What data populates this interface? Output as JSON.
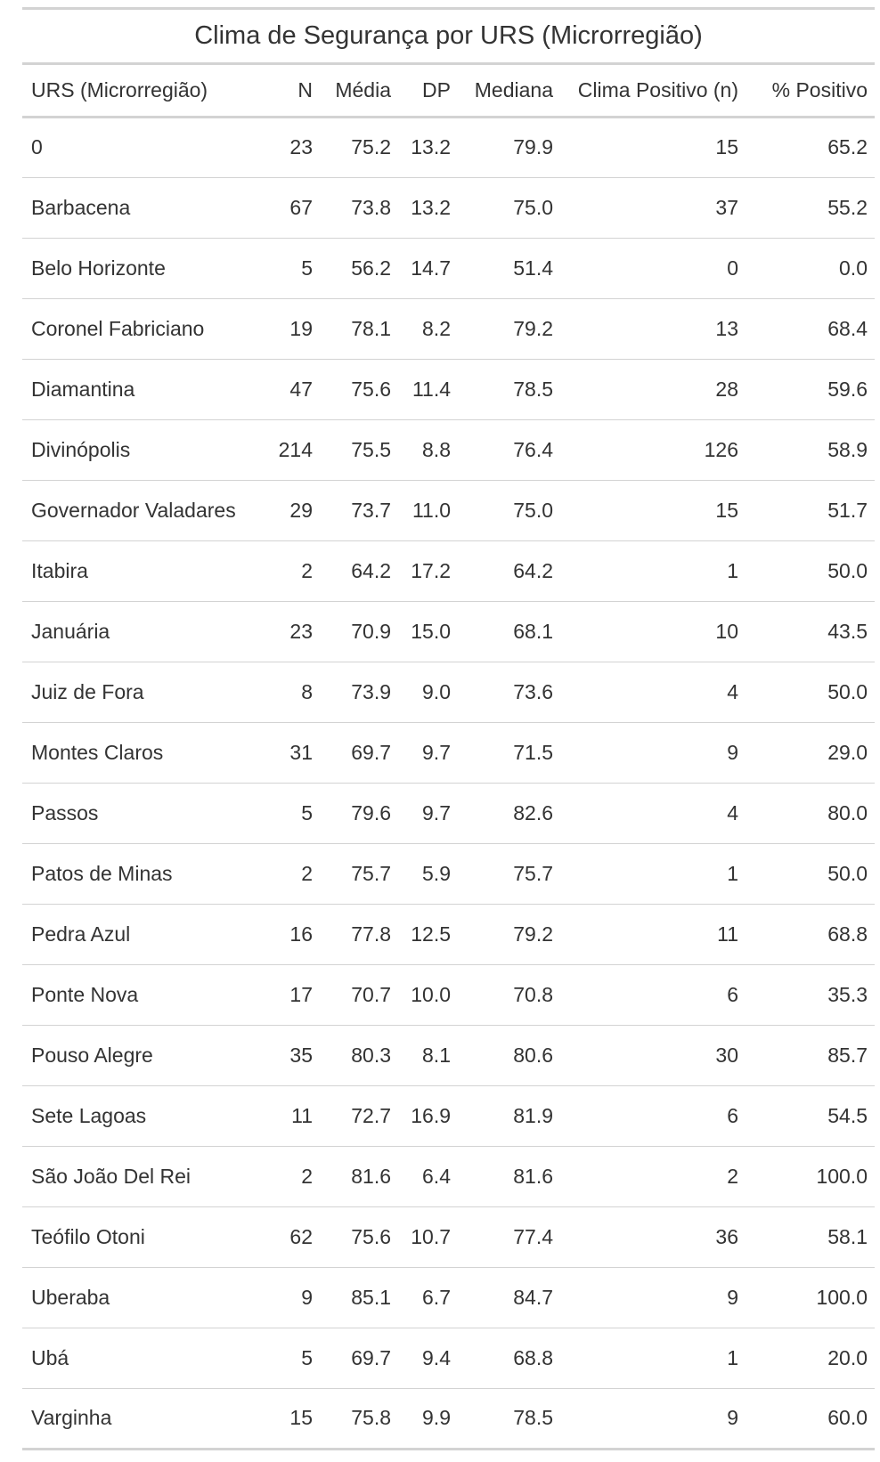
{
  "table": {
    "title": "Clima de Segurança por URS (Microrregião)",
    "columns": [
      "URS (Microrregião)",
      "N",
      "Média",
      "DP",
      "Mediana",
      "Clima Positivo (n)",
      "% Positivo"
    ],
    "rows": [
      [
        "0",
        "23",
        "75.2",
        "13.2",
        "79.9",
        "15",
        "65.2"
      ],
      [
        "Barbacena",
        "67",
        "73.8",
        "13.2",
        "75.0",
        "37",
        "55.2"
      ],
      [
        "Belo Horizonte",
        "5",
        "56.2",
        "14.7",
        "51.4",
        "0",
        "0.0"
      ],
      [
        "Coronel Fabriciano",
        "19",
        "78.1",
        "8.2",
        "79.2",
        "13",
        "68.4"
      ],
      [
        "Diamantina",
        "47",
        "75.6",
        "11.4",
        "78.5",
        "28",
        "59.6"
      ],
      [
        "Divinópolis",
        "214",
        "75.5",
        "8.8",
        "76.4",
        "126",
        "58.9"
      ],
      [
        "Governador Valadares",
        "29",
        "73.7",
        "11.0",
        "75.0",
        "15",
        "51.7"
      ],
      [
        "Itabira",
        "2",
        "64.2",
        "17.2",
        "64.2",
        "1",
        "50.0"
      ],
      [
        "Januária",
        "23",
        "70.9",
        "15.0",
        "68.1",
        "10",
        "43.5"
      ],
      [
        "Juiz de Fora",
        "8",
        "73.9",
        "9.0",
        "73.6",
        "4",
        "50.0"
      ],
      [
        "Montes Claros",
        "31",
        "69.7",
        "9.7",
        "71.5",
        "9",
        "29.0"
      ],
      [
        "Passos",
        "5",
        "79.6",
        "9.7",
        "82.6",
        "4",
        "80.0"
      ],
      [
        "Patos de Minas",
        "2",
        "75.7",
        "5.9",
        "75.7",
        "1",
        "50.0"
      ],
      [
        "Pedra Azul",
        "16",
        "77.8",
        "12.5",
        "79.2",
        "11",
        "68.8"
      ],
      [
        "Ponte Nova",
        "17",
        "70.7",
        "10.0",
        "70.8",
        "6",
        "35.3"
      ],
      [
        "Pouso Alegre",
        "35",
        "80.3",
        "8.1",
        "80.6",
        "30",
        "85.7"
      ],
      [
        "Sete Lagoas",
        "11",
        "72.7",
        "16.9",
        "81.9",
        "6",
        "54.5"
      ],
      [
        "São João Del Rei",
        "2",
        "81.6",
        "6.4",
        "81.6",
        "2",
        "100.0"
      ],
      [
        "Teófilo Otoni",
        "62",
        "75.6",
        "10.7",
        "77.4",
        "36",
        "58.1"
      ],
      [
        "Uberaba",
        "9",
        "85.1",
        "6.7",
        "84.7",
        "9",
        "100.0"
      ],
      [
        "Ubá",
        "5",
        "69.7",
        "9.4",
        "68.8",
        "1",
        "20.0"
      ],
      [
        "Varginha",
        "15",
        "75.8",
        "9.9",
        "78.5",
        "9",
        "60.0"
      ]
    ]
  }
}
